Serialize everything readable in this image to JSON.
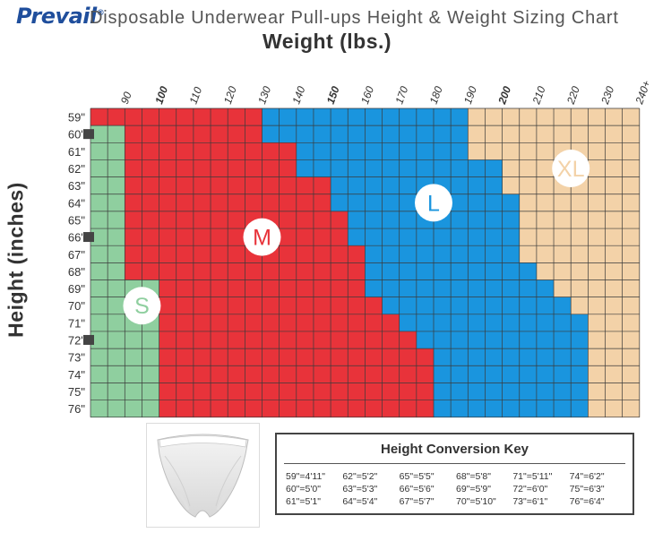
{
  "header": {
    "brand": "Prevail",
    "brand_mark": "®",
    "title": "Disposable Underwear Pull-ups Height & Weight Sizing Chart"
  },
  "chart_data": {
    "type": "heatmap",
    "title": "Disposable Underwear Pull-ups Height & Weight Sizing Chart",
    "xlabel": "Weight (lbs.)",
    "ylabel": "Height (inches)",
    "x_ticks": [
      "90",
      "100",
      "110",
      "120",
      "130",
      "140",
      "150",
      "160",
      "170",
      "180",
      "190",
      "200",
      "210",
      "220",
      "230",
      "240+"
    ],
    "x_ticks_bold": [
      "100",
      "150",
      "200"
    ],
    "y_ticks": [
      "59\"",
      "60\"",
      "61\"",
      "62\"",
      "63\"",
      "64\"",
      "65\"",
      "66\"",
      "67\"",
      "68\"",
      "69\"",
      "70\"",
      "71\"",
      "72\"",
      "73\"",
      "74\"",
      "75\"",
      "76\""
    ],
    "y_tick_markers": [
      "60\"",
      "66\"",
      "72\""
    ],
    "sizes": [
      {
        "label": "S",
        "color": "#8fcf9f"
      },
      {
        "label": "M",
        "color": "#e8333a"
      },
      {
        "label": "L",
        "color": "#1a95de"
      },
      {
        "label": "XL",
        "color": "#f3d2a8"
      }
    ],
    "weight_range_lbs": [
      80,
      240
    ],
    "height_range_in": [
      59,
      76
    ],
    "boundaries_lbs_by_height": {
      "heights": [
        59,
        60,
        61,
        62,
        63,
        64,
        65,
        66,
        67,
        68,
        69,
        70,
        71,
        72,
        73,
        74,
        75,
        76
      ],
      "s_max": [
        80,
        90,
        90,
        90,
        90,
        90,
        90,
        90,
        90,
        90,
        100,
        100,
        100,
        100,
        100,
        100,
        100,
        100
      ],
      "m_max": [
        130,
        130,
        140,
        140,
        150,
        150,
        155,
        155,
        160,
        160,
        160,
        165,
        170,
        175,
        180,
        180,
        180,
        180
      ],
      "l_max": [
        190,
        190,
        190,
        200,
        200,
        205,
        205,
        205,
        205,
        210,
        215,
        220,
        225,
        225,
        225,
        225,
        225,
        225
      ],
      "xl_max": [
        240,
        240,
        240,
        240,
        240,
        240,
        240,
        240,
        240,
        240,
        240,
        240,
        240,
        240,
        240,
        240,
        240,
        240
      ]
    }
  },
  "conversion_key": {
    "title": "Height Conversion Key",
    "items": [
      "59\"=4'11\"",
      "62\"=5'2\"",
      "65\"=5'5\"",
      "68\"=5'8\"",
      "71\"=5'11\"",
      "74\"=6'2\"",
      "60\"=5'0\"",
      "63\"=5'3\"",
      "66\"=5'6\"",
      "69\"=5'9\"",
      "72\"=6'0\"",
      "75\"=6'3\"",
      "61\"=5'1\"",
      "64\"=5'4\"",
      "67\"=5'7\"",
      "70\"=5'10\"",
      "73\"=6'1\"",
      "76\"=6'4\""
    ]
  },
  "colors": {
    "grid_line": "#3a3a3a",
    "label_text": "#333333",
    "brand": "#1f4e9c"
  }
}
